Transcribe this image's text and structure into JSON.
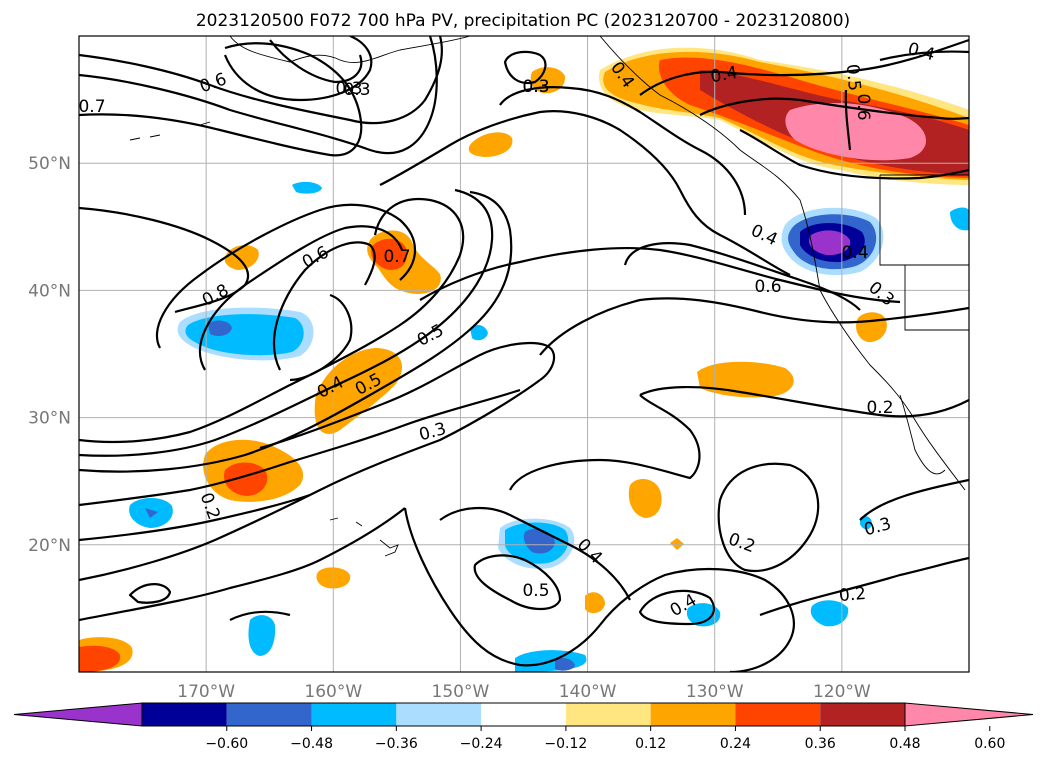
{
  "title": "2023120500 F072 700 hPa PV, precipitation PC (2023120700 - 2023120800)",
  "map": {
    "lon_range": [
      -180,
      -110
    ],
    "lat_range": [
      10,
      60
    ],
    "lon_ticks": [
      {
        "lon": -170,
        "label": "170°W"
      },
      {
        "lon": -160,
        "label": "160°W"
      },
      {
        "lon": -150,
        "label": "150°W"
      },
      {
        "lon": -140,
        "label": "140°W"
      },
      {
        "lon": -130,
        "label": "130°W"
      },
      {
        "lon": -120,
        "label": "120°W"
      }
    ],
    "lat_ticks": [
      {
        "lat": 20,
        "label": "20°N"
      },
      {
        "lat": 30,
        "label": "30°N"
      },
      {
        "lat": 40,
        "label": "40°N"
      },
      {
        "lat": 50,
        "label": "50°N"
      }
    ],
    "contour_labels": [
      "0.7",
      "0.6",
      "0.3",
      "0.4",
      "0.3",
      "0.4",
      "0.4",
      "0.5",
      "0.6",
      "0.7",
      "0.8",
      "0.5",
      "0.6",
      "0.4",
      "0.5",
      "0.3",
      "0.2",
      "0.4",
      "0.6",
      "0.4",
      "0.3",
      "0.2",
      "0.3",
      "0.3",
      "0.2",
      "0.4",
      "0.5",
      "0.4",
      "0.2",
      "0.3"
    ]
  },
  "colorbar": {
    "ticks": [
      "−0.60",
      "−0.48",
      "−0.36",
      "−0.24",
      "−0.12",
      "0.12",
      "0.24",
      "0.36",
      "0.48",
      "0.60"
    ],
    "colors": [
      "#9933cc",
      "#000099",
      "#3366cc",
      "#00bbff",
      "#aaddff",
      "#ffffff",
      "#ffe680",
      "#ffa500",
      "#ff4400",
      "#b22222",
      "#ff88aa"
    ]
  }
}
